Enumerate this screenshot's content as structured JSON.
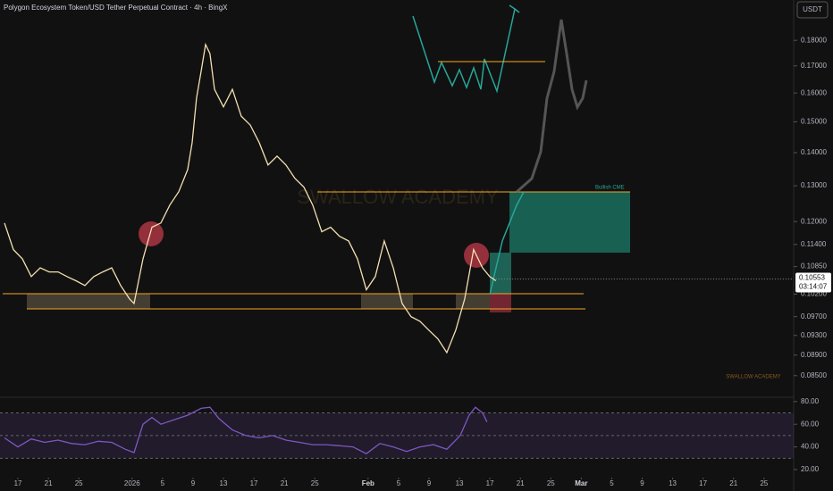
{
  "chart_data": [
    {
      "type": "line",
      "title": "Polygon Ecosystem Token/USD Tether Perpetual Contract · 4h · BingX",
      "currency": "USDT",
      "log_scale": true,
      "grid": false,
      "color": "#f3dfb0",
      "annotation": "Bullish CME",
      "watermark": "SWALLOW ACADEMY",
      "last_price": {
        "value": 0.10553,
        "label": "0.10553"
      },
      "countdown": "03:14:07",
      "xlim": [
        -2.35,
        101.9
      ],
      "ylim": [
        0.0818,
        0.197
      ],
      "yticks": [
        {
          "value": 0.18,
          "label": "0.18000"
        },
        {
          "value": 0.17,
          "label": "0.17000"
        },
        {
          "value": 0.16,
          "label": "0.16000"
        },
        {
          "value": 0.15,
          "label": "0.15000"
        },
        {
          "value": 0.14,
          "label": "0.14000"
        },
        {
          "value": 0.13,
          "label": "0.13000"
        },
        {
          "value": 0.12,
          "label": "0.12000"
        },
        {
          "value": 0.114,
          "label": "0.11400"
        },
        {
          "value": 0.1085,
          "label": "0.10850"
        },
        {
          "value": 0.102,
          "label": "0.10200"
        },
        {
          "value": 0.097,
          "label": "0.09700"
        },
        {
          "value": 0.093,
          "label": "0.09300"
        },
        {
          "value": 0.089,
          "label": "0.08900"
        },
        {
          "value": 0.085,
          "label": "0.08500"
        }
      ],
      "x": [
        -1.76,
        -0.59,
        0.59,
        1.76,
        2.93,
        4.11,
        5.28,
        6.46,
        7.63,
        8.8,
        9.98,
        11.15,
        12.32,
        13.5,
        14.67,
        15.26,
        16.43,
        17.61,
        18.78,
        19.95,
        21.13,
        22.3,
        22.89,
        23.47,
        24.06,
        24.65,
        25.23,
        25.82,
        27.0,
        28.17,
        29.34,
        30.52,
        31.69,
        32.86,
        34.04,
        35.21,
        36.38,
        37.56,
        38.73,
        39.91,
        41.08,
        42.25,
        43.43,
        44.6,
        45.77,
        46.95,
        48.12,
        49.3,
        50.47,
        51.64,
        52.82,
        53.99,
        55.16,
        56.34,
        57.51,
        58.69,
        59.86,
        61.03,
        61.97,
        62.79
      ],
      "values": [
        0.1196,
        0.1127,
        0.1104,
        0.1061,
        0.1082,
        0.1072,
        0.1072,
        0.1061,
        0.1051,
        0.104,
        0.1061,
        0.1072,
        0.1082,
        0.104,
        0.1009,
        0.0999,
        0.1104,
        0.1185,
        0.1196,
        0.1245,
        0.1283,
        0.1348,
        0.1432,
        0.1582,
        0.1679,
        0.1783,
        0.1747,
        0.1613,
        0.1551,
        0.1613,
        0.1519,
        0.1489,
        0.1432,
        0.1362,
        0.1389,
        0.1362,
        0.1322,
        0.1296,
        0.1245,
        0.1173,
        0.1185,
        0.1161,
        0.1149,
        0.1104,
        0.103,
        0.1061,
        0.1149,
        0.1082,
        0.0999,
        0.097,
        0.096,
        0.0941,
        0.0923,
        0.0895,
        0.0941,
        0.1009,
        0.1127,
        0.1082,
        0.1061,
        0.1051
      ]
    },
    {
      "type": "line",
      "color": "#7e57c2",
      "bands": [
        30,
        50,
        70
      ],
      "band_color": "#7e57c2",
      "xlim": [
        -2.35,
        101.9
      ],
      "ylim": [
        14.5,
        83
      ],
      "yticks": [
        {
          "value": 80,
          "label": "80.00"
        },
        {
          "value": 60,
          "label": "60.00"
        },
        {
          "value": 40,
          "label": "40.00"
        },
        {
          "value": 20,
          "label": "20.00"
        }
      ],
      "xticks": [
        {
          "value": 0,
          "label": "17"
        },
        {
          "value": 4,
          "label": "21"
        },
        {
          "value": 8,
          "label": "25"
        },
        {
          "value": 15,
          "label": "2026"
        },
        {
          "value": 19,
          "label": "5"
        },
        {
          "value": 23,
          "label": "9"
        },
        {
          "value": 27,
          "label": "13"
        },
        {
          "value": 31,
          "label": "17"
        },
        {
          "value": 35,
          "label": "21"
        },
        {
          "value": 39,
          "label": "25"
        },
        {
          "value": 46,
          "label": "Feb"
        },
        {
          "value": 50,
          "label": "5"
        },
        {
          "value": 54,
          "label": "9"
        },
        {
          "value": 58,
          "label": "13"
        },
        {
          "value": 62,
          "label": "17"
        },
        {
          "value": 66,
          "label": "21"
        },
        {
          "value": 70,
          "label": "25"
        },
        {
          "value": 74,
          "label": "Mar"
        },
        {
          "value": 78,
          "label": "5"
        },
        {
          "value": 82,
          "label": "9"
        },
        {
          "value": 86,
          "label": "13"
        },
        {
          "value": 90,
          "label": "17"
        },
        {
          "value": 94,
          "label": "21"
        },
        {
          "value": 98,
          "label": "25"
        }
      ],
      "x": [
        -1.76,
        0,
        1.76,
        3.52,
        5.28,
        7.04,
        8.8,
        10.56,
        12.32,
        14.08,
        15.26,
        16.43,
        17.61,
        18.78,
        20.54,
        22.3,
        24.06,
        25.23,
        26.41,
        28.17,
        29.93,
        31.69,
        33.45,
        35.21,
        36.97,
        38.73,
        40.49,
        42.25,
        44.01,
        45.77,
        47.54,
        49.3,
        51.06,
        52.82,
        54.58,
        56.34,
        58.1,
        59.27,
        60.09,
        61.03,
        61.62
      ],
      "values": [
        48,
        40,
        47,
        44,
        46,
        43,
        42,
        45,
        44,
        38,
        35,
        60,
        66,
        60,
        64,
        68,
        74,
        75,
        65,
        55,
        50,
        48,
        50,
        46,
        44,
        42,
        42,
        41,
        40,
        34,
        43,
        40,
        36,
        40,
        42,
        38,
        50,
        68,
        75,
        70,
        62
      ]
    }
  ]
}
